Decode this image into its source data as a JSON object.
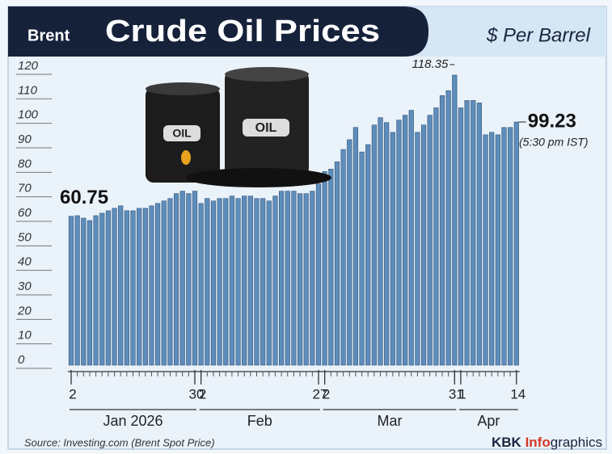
{
  "chart_data": {
    "type": "bar",
    "title_prefix": "Brent",
    "title": "Crude Oil Prices",
    "subtitle": "$ Per Barrel",
    "note": "(5:30 pm IST)",
    "source": "Source: Investing.com (Brent Spot Price)",
    "brand": {
      "left": "KBK",
      "highlight": "Info",
      "right": "graphics"
    },
    "barrel_labels": [
      "OIL",
      "OIL"
    ],
    "color": "#5f8dbb",
    "categories": [
      "2",
      null,
      null,
      null,
      null,
      null,
      null,
      null,
      null,
      null,
      null,
      null,
      null,
      null,
      null,
      null,
      null,
      null,
      null,
      null,
      "30",
      "2",
      null,
      null,
      null,
      null,
      null,
      null,
      null,
      null,
      null,
      null,
      null,
      null,
      null,
      null,
      null,
      null,
      null,
      null,
      "27",
      "2",
      null,
      null,
      null,
      null,
      null,
      null,
      null,
      null,
      null,
      null,
      null,
      null,
      null,
      null,
      null,
      null,
      null,
      null,
      null,
      null,
      "31",
      "1",
      null,
      null,
      null,
      null,
      null,
      null,
      null,
      null,
      "14"
    ],
    "months": [
      "Jan 2026",
      "Feb",
      "Mar",
      "Apr"
    ],
    "values": [
      60.75,
      61,
      60,
      59,
      61,
      62,
      63,
      64,
      65,
      63,
      63,
      64,
      64,
      65,
      66,
      67,
      68,
      70,
      71,
      70,
      71,
      66,
      68,
      67,
      68,
      68,
      69,
      68,
      69,
      69,
      68,
      68,
      67,
      69,
      71,
      71,
      71,
      70,
      70,
      71,
      74,
      79,
      80,
      83,
      88,
      92,
      97,
      87,
      90,
      98,
      101,
      99,
      95,
      100,
      102,
      104,
      95,
      98,
      102,
      105,
      110,
      112,
      118.35,
      105,
      108,
      108,
      107,
      94,
      95,
      94,
      97,
      97,
      99.23
    ],
    "ylim": [
      0,
      120
    ],
    "yticks": [
      0,
      10,
      20,
      30,
      40,
      50,
      60,
      70,
      80,
      90,
      100,
      110,
      120
    ]
  }
}
